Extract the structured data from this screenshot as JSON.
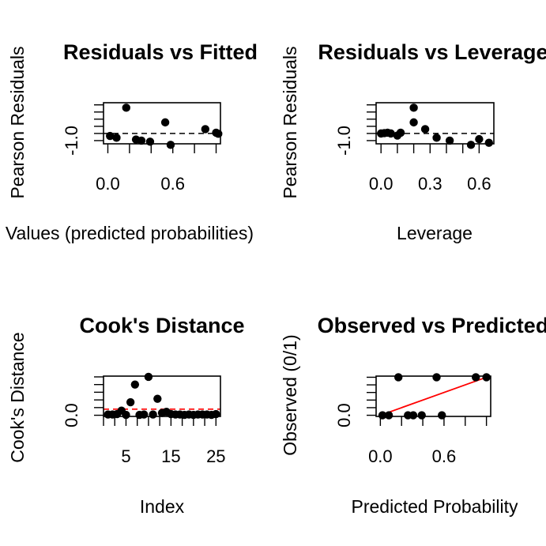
{
  "chart_data": [
    {
      "type": "scatter",
      "title": "Residuals vs Fitted",
      "xlabel": "Fitted Values (predicted probabilities)",
      "ylabel": "Pearson Residuals",
      "xlim": [
        -0.04,
        1.04
      ],
      "ylim": [
        -1.45,
        4.3
      ],
      "x_ticks": [
        0.0,
        0.2,
        0.4,
        0.6,
        0.8,
        1.0
      ],
      "x_tick_labels": [
        "0.0",
        "",
        "",
        "0.6",
        "",
        ""
      ],
      "y_ticks": [
        -1.0,
        0.0,
        1.0,
        2.0,
        3.0,
        4.0
      ],
      "y_tick_labels": [
        "-1.0",
        "",
        "",
        "",
        "",
        ""
      ],
      "ref_line": {
        "y": 0,
        "style": "dashed",
        "color": "#000000"
      },
      "points": [
        {
          "x": 0.02,
          "y": -0.35
        },
        {
          "x": 0.08,
          "y": -0.6
        },
        {
          "x": 0.17,
          "y": 3.6
        },
        {
          "x": 0.26,
          "y": -0.85
        },
        {
          "x": 0.31,
          "y": -1.0
        },
        {
          "x": 0.39,
          "y": -1.15
        },
        {
          "x": 0.53,
          "y": 1.55
        },
        {
          "x": 0.58,
          "y": -1.6
        },
        {
          "x": 0.9,
          "y": 0.6
        },
        {
          "x": 1.0,
          "y": 0.1
        },
        {
          "x": 1.02,
          "y": -0.05
        }
      ]
    },
    {
      "type": "scatter",
      "title": "Residuals vs Leverage",
      "xlabel": "Leverage",
      "ylabel": "Pearson Residuals",
      "xlim": [
        -0.03,
        0.69
      ],
      "ylim": [
        -1.45,
        4.3
      ],
      "x_ticks": [
        0.0,
        0.1,
        0.2,
        0.3,
        0.4,
        0.5,
        0.6
      ],
      "x_tick_labels": [
        "0.0",
        "",
        "",
        "0.3",
        "",
        "",
        "0.6"
      ],
      "y_ticks": [
        -1.0,
        0.0,
        1.0,
        2.0,
        3.0,
        4.0
      ],
      "y_tick_labels": [
        "-1.0",
        "",
        "",
        "",
        "",
        ""
      ],
      "ref_line": {
        "y": 0,
        "style": "dashed",
        "color": "#000000"
      },
      "points": [
        {
          "x": 0.0,
          "y": 0.0
        },
        {
          "x": 0.02,
          "y": 0.05
        },
        {
          "x": 0.04,
          "y": 0.1
        },
        {
          "x": 0.06,
          "y": 0.0
        },
        {
          "x": 0.1,
          "y": -0.3
        },
        {
          "x": 0.12,
          "y": 0.1
        },
        {
          "x": 0.2,
          "y": 3.6
        },
        {
          "x": 0.2,
          "y": 1.55
        },
        {
          "x": 0.27,
          "y": 0.6
        },
        {
          "x": 0.34,
          "y": -0.6
        },
        {
          "x": 0.42,
          "y": -1.0
        },
        {
          "x": 0.55,
          "y": -1.6
        },
        {
          "x": 0.6,
          "y": -0.8
        },
        {
          "x": 0.66,
          "y": -1.3
        }
      ]
    },
    {
      "type": "scatter",
      "title": "Cook's Distance",
      "xlabel": "Index",
      "ylabel": "Cook's Distance",
      "xlim": [
        0,
        26
      ],
      "ylim": [
        -0.03,
        1.02
      ],
      "x_ticks": [
        0,
        2.5,
        5,
        7.5,
        10,
        12.5,
        15,
        17.5,
        20,
        22.5,
        25
      ],
      "x_tick_labels": [
        "",
        "",
        "5",
        "",
        "",
        "",
        "15",
        "",
        "",
        "",
        "25"
      ],
      "y_ticks": [
        0.0,
        0.2,
        0.4,
        0.6,
        0.8,
        1.0
      ],
      "y_tick_labels": [
        "0.0",
        "",
        "",
        "",
        "",
        ""
      ],
      "ref_line": {
        "y": 0.16,
        "style": "dashed",
        "color": "#ff0000"
      },
      "points": [
        {
          "x": 1,
          "y": 0.02
        },
        {
          "x": 2,
          "y": 0.02
        },
        {
          "x": 3,
          "y": 0.03
        },
        {
          "x": 4,
          "y": 0.12
        },
        {
          "x": 5,
          "y": 0.01
        },
        {
          "x": 6,
          "y": 0.34
        },
        {
          "x": 7,
          "y": 0.8
        },
        {
          "x": 8,
          "y": 0.01
        },
        {
          "x": 9,
          "y": 0.02
        },
        {
          "x": 10,
          "y": 1.0
        },
        {
          "x": 11,
          "y": 0.02
        },
        {
          "x": 12,
          "y": 0.43
        },
        {
          "x": 13,
          "y": 0.06
        },
        {
          "x": 14,
          "y": 0.09
        },
        {
          "x": 15,
          "y": 0.03
        },
        {
          "x": 16,
          "y": 0.02
        },
        {
          "x": 17,
          "y": 0.02
        },
        {
          "x": 18,
          "y": 0.01
        },
        {
          "x": 19,
          "y": 0.02
        },
        {
          "x": 20,
          "y": 0.01
        },
        {
          "x": 21,
          "y": 0.02
        },
        {
          "x": 22,
          "y": 0.02
        },
        {
          "x": 23,
          "y": 0.02
        },
        {
          "x": 24,
          "y": 0.01
        },
        {
          "x": 25,
          "y": 0.03
        }
      ]
    },
    {
      "type": "scatter",
      "title": "Observed vs Predicted",
      "xlabel": "Predicted Probability",
      "ylabel": "Observed (0/1)",
      "xlim": [
        -0.04,
        1.04
      ],
      "ylim": [
        -0.03,
        1.03
      ],
      "x_ticks": [
        0.0,
        0.2,
        0.4,
        0.6,
        0.8,
        1.0
      ],
      "x_tick_labels": [
        "0.0",
        "",
        "",
        "0.6",
        "",
        ""
      ],
      "y_ticks": [
        0.0,
        0.2,
        0.4,
        0.6,
        0.8,
        1.0
      ],
      "y_tick_labels": [
        "0.0",
        "",
        "",
        "",
        "",
        ""
      ],
      "ref_segment": {
        "x": [
          0.0,
          1.0
        ],
        "y": [
          0.0,
          1.0
        ],
        "color": "#ff0000"
      },
      "points": [
        {
          "x": 0.02,
          "y": 0
        },
        {
          "x": 0.08,
          "y": 0
        },
        {
          "x": 0.17,
          "y": 1
        },
        {
          "x": 0.26,
          "y": 0
        },
        {
          "x": 0.31,
          "y": 0
        },
        {
          "x": 0.39,
          "y": 0
        },
        {
          "x": 0.53,
          "y": 1
        },
        {
          "x": 0.58,
          "y": 0
        },
        {
          "x": 0.9,
          "y": 1
        },
        {
          "x": 1.0,
          "y": 1
        }
      ]
    }
  ]
}
